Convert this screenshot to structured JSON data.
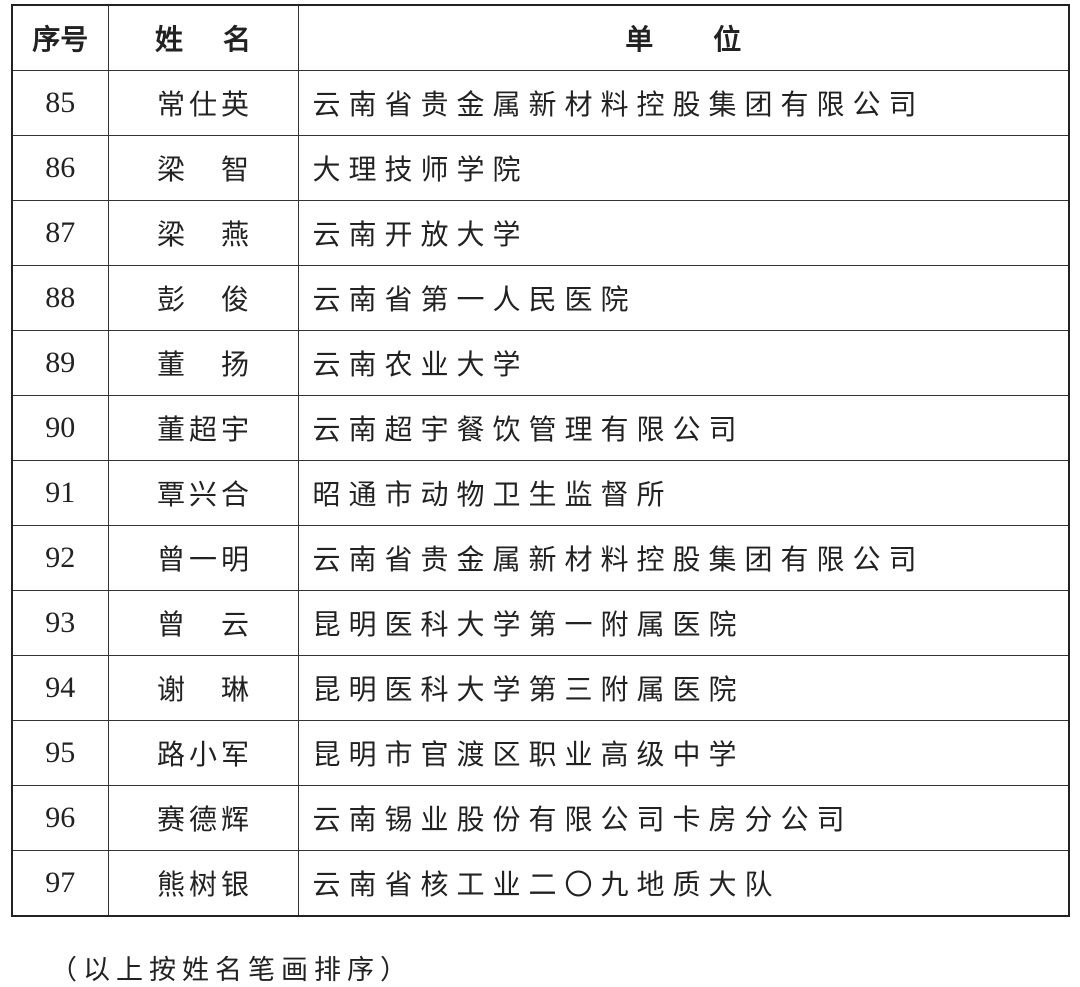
{
  "header": {
    "index": "序号",
    "name": "姓　名",
    "name_chars": [
      "姓",
      "名"
    ],
    "unit": "单位"
  },
  "rows": [
    {
      "index": "85",
      "name": "常仕英",
      "unit": "云南省贵金属新材料控股集团有限公司"
    },
    {
      "index": "86",
      "name": "梁智",
      "unit": "大理技师学院"
    },
    {
      "index": "87",
      "name": "梁燕",
      "unit": "云南开放大学"
    },
    {
      "index": "88",
      "name": "彭俊",
      "unit": "云南省第一人民医院"
    },
    {
      "index": "89",
      "name": "董扬",
      "unit": "云南农业大学"
    },
    {
      "index": "90",
      "name": "董超宇",
      "unit": "云南超宇餐饮管理有限公司"
    },
    {
      "index": "91",
      "name": "覃兴合",
      "unit": "昭通市动物卫生监督所"
    },
    {
      "index": "92",
      "name": "曾一明",
      "unit": "云南省贵金属新材料控股集团有限公司"
    },
    {
      "index": "93",
      "name": "曾云",
      "unit": "昆明医科大学第一附属医院"
    },
    {
      "index": "94",
      "name": "谢琳",
      "unit": "昆明医科大学第三附属医院"
    },
    {
      "index": "95",
      "name": "路小军",
      "unit": "昆明市官渡区职业高级中学"
    },
    {
      "index": "96",
      "name": "赛德辉",
      "unit": "云南锡业股份有限公司卡房分公司"
    },
    {
      "index": "97",
      "name": "熊树银",
      "unit": "云南省核工业二〇九地质大队"
    }
  ],
  "footer": "（以上按姓名笔画排序）"
}
